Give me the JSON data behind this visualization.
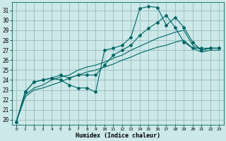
{
  "xlabel": "Humidex (Indice chaleur)",
  "background_color": "#cce8e8",
  "grid_color": "#99bbbb",
  "line_color": "#006666",
  "xlim": [
    -0.5,
    23.5
  ],
  "ylim": [
    19.5,
    31.8
  ],
  "yticks": [
    20,
    21,
    22,
    23,
    24,
    25,
    26,
    27,
    28,
    29,
    30,
    31
  ],
  "xticks": [
    0,
    1,
    2,
    3,
    4,
    5,
    6,
    7,
    8,
    9,
    10,
    11,
    12,
    13,
    14,
    15,
    16,
    17,
    18,
    19,
    20,
    21,
    22,
    23
  ],
  "series_with_markers": [
    [
      19.8,
      22.8,
      23.8,
      24.0,
      24.2,
      24.0,
      23.5,
      23.2,
      23.2,
      22.8,
      27.0,
      27.2,
      27.5,
      28.3,
      31.2,
      31.4,
      31.3,
      29.5,
      30.3,
      29.3,
      27.8,
      27.0,
      27.2,
      27.2
    ],
    [
      19.8,
      22.8,
      23.8,
      24.0,
      24.2,
      24.5,
      24.2,
      24.5,
      24.5,
      24.5,
      25.5,
      26.5,
      27.0,
      27.5,
      28.5,
      29.2,
      29.8,
      30.5,
      29.3,
      27.8,
      27.2,
      27.2,
      27.2,
      27.2
    ]
  ],
  "series_no_markers": [
    [
      19.8,
      22.5,
      23.2,
      23.5,
      24.0,
      24.3,
      24.5,
      25.0,
      25.3,
      25.5,
      25.8,
      26.2,
      26.5,
      27.0,
      27.4,
      27.8,
      28.2,
      28.5,
      28.8,
      29.0,
      27.5,
      27.0,
      27.2,
      27.2
    ],
    [
      19.8,
      22.3,
      23.0,
      23.2,
      23.5,
      23.8,
      24.2,
      24.5,
      24.8,
      25.0,
      25.3,
      25.6,
      26.0,
      26.3,
      26.7,
      27.0,
      27.3,
      27.5,
      27.8,
      28.0,
      27.2,
      26.8,
      27.0,
      27.0
    ]
  ]
}
